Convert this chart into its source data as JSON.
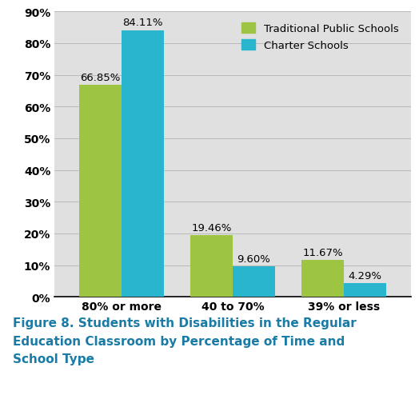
{
  "categories": [
    "80% or more",
    "40 to 70%",
    "39% or less"
  ],
  "traditional_values": [
    66.85,
    19.46,
    11.67
  ],
  "charter_values": [
    84.11,
    9.6,
    4.29
  ],
  "traditional_labels": [
    "66.85%",
    "19.46%",
    "11.67%"
  ],
  "charter_labels": [
    "84.11%",
    "9.60%",
    "4.29%"
  ],
  "traditional_color": "#9DC541",
  "charter_color": "#29B5CE",
  "chart_bg_color": "#E0E0E0",
  "figure_bg_color": "#FFFFFF",
  "ylim": [
    0,
    90
  ],
  "yticks": [
    0,
    10,
    20,
    30,
    40,
    50,
    60,
    70,
    80,
    90
  ],
  "ytick_labels": [
    "0%",
    "10%",
    "20%",
    "30%",
    "40%",
    "50%",
    "60%",
    "70%",
    "80%",
    "90%"
  ],
  "legend_traditional": "Traditional Public Schools",
  "legend_charter": "Charter Schools",
  "caption_line1": "Figure 8. Students with Disabilities in the Regular",
  "caption_line2": "Education Classroom by Percentage of Time and",
  "caption_line3": "School Type",
  "caption_color": "#1A7BA6",
  "bar_width": 0.38,
  "label_fontsize": 9.5,
  "tick_fontsize": 10,
  "legend_fontsize": 9.5,
  "caption_fontsize": 11
}
